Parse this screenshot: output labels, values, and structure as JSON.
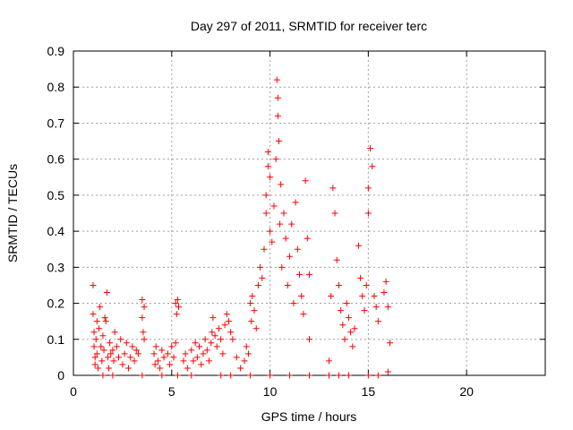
{
  "chart_data": {
    "type": "scatter",
    "title": "Day 297 of 2011, SRMTID for receiver terc",
    "xlabel": "GPS time / hours",
    "ylabel": "SRMTID / TECUs",
    "xlim": [
      0,
      24
    ],
    "ylim": [
      0,
      0.9
    ],
    "x_ticks": [
      0,
      5,
      10,
      15,
      20
    ],
    "y_ticks": [
      0,
      0.1,
      0.2,
      0.3,
      0.4,
      0.5,
      0.6,
      0.7,
      0.8,
      0.9
    ],
    "x_tick_labels": [
      "0",
      "5",
      "10",
      "15",
      "20"
    ],
    "y_tick_labels": [
      "0",
      "0.1",
      "0.2",
      "0.3",
      "0.4",
      "0.5",
      "0.6",
      "0.7",
      "0.8",
      "0.9"
    ],
    "grid": true,
    "marker": "plus",
    "color": "#ff0000",
    "series": [
      {
        "points": [
          [
            1.0,
            0.25
          ],
          [
            1.0,
            0.17
          ],
          [
            1.05,
            0.12
          ],
          [
            1.05,
            0.08
          ],
          [
            1.1,
            0.05
          ],
          [
            1.1,
            0.03
          ],
          [
            1.15,
            0.1
          ],
          [
            1.2,
            0.15
          ],
          [
            1.2,
            0.06
          ],
          [
            1.25,
            0.02
          ],
          [
            1.3,
            0.13
          ],
          [
            1.35,
            0.19
          ],
          [
            1.4,
            0.08
          ],
          [
            1.45,
            0.04
          ],
          [
            1.5,
            0.11
          ],
          [
            1.55,
            0.07
          ],
          [
            1.6,
            0.16
          ],
          [
            1.65,
            0.15
          ],
          [
            1.7,
            0.23
          ],
          [
            1.75,
            0.05
          ],
          [
            1.8,
            0.02
          ],
          [
            1.85,
            0.09
          ],
          [
            1.9,
            0.06
          ],
          [
            2.0,
            0.07
          ],
          [
            2.05,
            0.04
          ],
          [
            2.1,
            0.12
          ],
          [
            2.2,
            0.08
          ],
          [
            2.3,
            0.05
          ],
          [
            2.4,
            0.1
          ],
          [
            2.5,
            0.03
          ],
          [
            2.6,
            0.06
          ],
          [
            2.7,
            0.09
          ],
          [
            2.8,
            0.02
          ],
          [
            2.9,
            0.05
          ],
          [
            3.0,
            0.08
          ],
          [
            3.1,
            0.04
          ],
          [
            3.2,
            0.07
          ],
          [
            3.3,
            0.06
          ],
          [
            3.5,
            0.21
          ],
          [
            3.5,
            0.16
          ],
          [
            3.55,
            0.12
          ],
          [
            3.6,
            0.1
          ],
          [
            3.6,
            0.19
          ],
          [
            4.1,
            0.06
          ],
          [
            4.15,
            0.03
          ],
          [
            4.2,
            0.08
          ],
          [
            4.3,
            0.04
          ],
          [
            4.4,
            0.02
          ],
          [
            4.5,
            0.07
          ],
          [
            4.6,
            0.05
          ],
          [
            4.8,
            0.06
          ],
          [
            4.9,
            0.03
          ],
          [
            5.0,
            0.08
          ],
          [
            5.1,
            0.05
          ],
          [
            5.2,
            0.09
          ],
          [
            5.2,
            0.2
          ],
          [
            5.25,
            0.17
          ],
          [
            5.3,
            0.21
          ],
          [
            5.35,
            0.19
          ],
          [
            5.6,
            0.04
          ],
          [
            5.7,
            0.06
          ],
          [
            5.8,
            0.02
          ],
          [
            6.0,
            0.07
          ],
          [
            6.1,
            0.04
          ],
          [
            6.2,
            0.09
          ],
          [
            6.3,
            0.05
          ],
          [
            6.4,
            0.08
          ],
          [
            6.5,
            0.03
          ],
          [
            6.6,
            0.06
          ],
          [
            6.7,
            0.1
          ],
          [
            6.8,
            0.07
          ],
          [
            6.9,
            0.04
          ],
          [
            7.0,
            0.09
          ],
          [
            7.05,
            0.12
          ],
          [
            7.1,
            0.16
          ],
          [
            7.2,
            0.11
          ],
          [
            7.3,
            0.08
          ],
          [
            7.4,
            0.13
          ],
          [
            7.5,
            0.1
          ],
          [
            7.6,
            0.06
          ],
          [
            7.7,
            0.14
          ],
          [
            7.8,
            0.17
          ],
          [
            7.9,
            0.15
          ],
          [
            8.0,
            0.12
          ],
          [
            8.1,
            0.1
          ],
          [
            8.3,
            0.05
          ],
          [
            8.5,
            0.02
          ],
          [
            8.7,
            0.04
          ],
          [
            8.8,
            0.08
          ],
          [
            8.9,
            0.06
          ],
          [
            9.0,
            0.2
          ],
          [
            9.05,
            0.15
          ],
          [
            9.1,
            0.22
          ],
          [
            9.2,
            0.18
          ],
          [
            9.3,
            0.13
          ],
          [
            9.4,
            0.25
          ],
          [
            9.5,
            0.3
          ],
          [
            9.6,
            0.27
          ],
          [
            9.7,
            0.35
          ],
          [
            9.8,
            0.45
          ],
          [
            9.8,
            0.5
          ],
          [
            9.9,
            0.58
          ],
          [
            9.9,
            0.62
          ],
          [
            10.0,
            0.4
          ],
          [
            10.0,
            0.55
          ],
          [
            10.1,
            0.37
          ],
          [
            10.2,
            0.47
          ],
          [
            10.3,
            0.6
          ],
          [
            10.35,
            0.82
          ],
          [
            10.4,
            0.77
          ],
          [
            10.4,
            0.72
          ],
          [
            10.45,
            0.65
          ],
          [
            10.5,
            0.42
          ],
          [
            10.55,
            0.53
          ],
          [
            10.6,
            0.3
          ],
          [
            10.7,
            0.45
          ],
          [
            10.8,
            0.38
          ],
          [
            10.9,
            0.25
          ],
          [
            11.0,
            0.33
          ],
          [
            11.1,
            0.42
          ],
          [
            11.2,
            0.2
          ],
          [
            11.3,
            0.48
          ],
          [
            11.4,
            0.35
          ],
          [
            11.5,
            0.28
          ],
          [
            11.6,
            0.22
          ],
          [
            11.7,
            0.17
          ],
          [
            11.8,
            0.54
          ],
          [
            11.9,
            0.38
          ],
          [
            12.0,
            0.1
          ],
          [
            12.0,
            0.28
          ],
          [
            13.0,
            0.04
          ],
          [
            13.1,
            0.22
          ],
          [
            13.2,
            0.52
          ],
          [
            13.3,
            0.45
          ],
          [
            13.4,
            0.32
          ],
          [
            13.5,
            0.25
          ],
          [
            13.6,
            0.18
          ],
          [
            13.7,
            0.14
          ],
          [
            13.8,
            0.1
          ],
          [
            13.9,
            0.2
          ],
          [
            14.0,
            0.16
          ],
          [
            14.1,
            0.12
          ],
          [
            14.2,
            0.08
          ],
          [
            14.3,
            0.13
          ],
          [
            14.5,
            0.36
          ],
          [
            14.6,
            0.27
          ],
          [
            14.7,
            0.22
          ],
          [
            14.8,
            0.18
          ],
          [
            14.9,
            0.25
          ],
          [
            15.0,
            0.45
          ],
          [
            15.0,
            0.52
          ],
          [
            15.1,
            0.63
          ],
          [
            15.2,
            0.58
          ],
          [
            15.3,
            0.22
          ],
          [
            15.4,
            0.19
          ],
          [
            15.5,
            0.15
          ],
          [
            15.8,
            0.23
          ],
          [
            15.9,
            0.26
          ],
          [
            16.0,
            0.19
          ],
          [
            16.1,
            0.09
          ],
          [
            1.5,
            0.0
          ],
          [
            2.0,
            0.0
          ],
          [
            3.5,
            0.0
          ],
          [
            4.5,
            0.0
          ],
          [
            5.3,
            0.0
          ],
          [
            6.0,
            0.0
          ],
          [
            7.5,
            0.0
          ],
          [
            8.0,
            0.0
          ],
          [
            9.0,
            0.0
          ],
          [
            10.0,
            0.0
          ],
          [
            11.0,
            0.0
          ],
          [
            12.0,
            0.0
          ],
          [
            13.0,
            0.0
          ],
          [
            13.5,
            0.0
          ],
          [
            14.0,
            0.0
          ],
          [
            15.0,
            0.0
          ],
          [
            15.5,
            0.0
          ],
          [
            16.0,
            0.01
          ]
        ]
      }
    ]
  }
}
